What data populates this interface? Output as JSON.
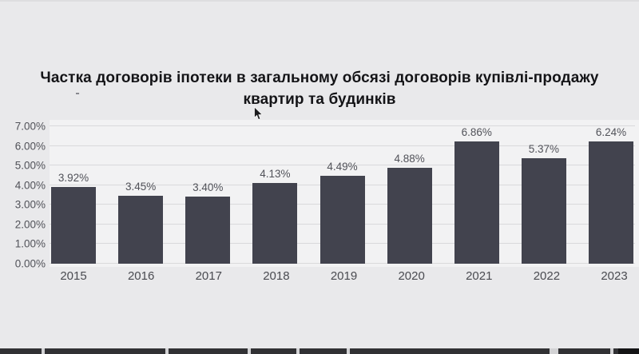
{
  "title": {
    "line1": "Частка договорів іпотеки в загальному обсязі договорів купівлі-продажу",
    "line2": "квартир та будинків"
  },
  "artifacts": {
    "stray_dash": "-"
  },
  "colors": {
    "background": "#e9e9eb",
    "plot_background": "#f2f2f3",
    "bar": "#42434e",
    "gridline": "#d9d9db",
    "axis_label": "#515259",
    "title": "#141417",
    "bottom_strip": "#313134"
  },
  "chart_data": {
    "type": "bar",
    "title": "Частка договорів іпотеки в загальному обсязі договорів купівлі-продажу квартир та будинків",
    "categories": [
      "2015",
      "2016",
      "2017",
      "2018",
      "2019",
      "2020",
      "2021",
      "2022",
      "2023"
    ],
    "values": [
      3.92,
      3.45,
      3.4,
      4.13,
      4.49,
      4.88,
      6.86,
      5.37,
      6.24
    ],
    "value_labels": [
      "3.92%",
      "3.45%",
      "3.40%",
      "4.13%",
      "4.49%",
      "4.88%",
      "6.86%",
      "5.37%",
      "6.24%"
    ],
    "xlabel": "",
    "ylabel": "",
    "ylim": [
      0,
      7
    ],
    "y_ticks": [
      {
        "label": "0.00%",
        "value": 0
      },
      {
        "label": "1.00%",
        "value": 1
      },
      {
        "label": "2.00%",
        "value": 2
      },
      {
        "label": "3.00%",
        "value": 3
      },
      {
        "label": "4.00%",
        "value": 4
      },
      {
        "label": "5.00%",
        "value": 5
      },
      {
        "label": "6.00%",
        "value": 6
      },
      {
        "label": "7.00%",
        "value": 7
      }
    ],
    "grid": true,
    "legend_position": "none"
  }
}
